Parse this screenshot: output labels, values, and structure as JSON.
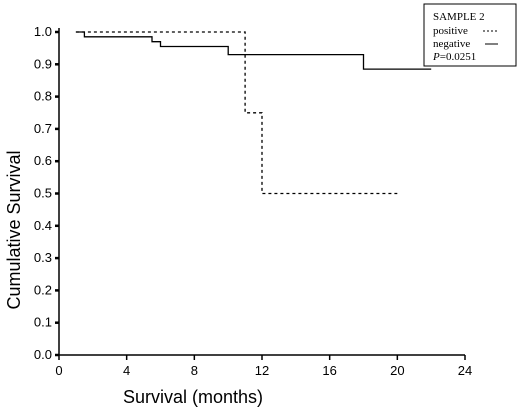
{
  "chart_data": {
    "type": "line",
    "subtype": "kaplan-meier-step",
    "xlabel": "Survival (months)",
    "ylabel": "Cumulative Survival",
    "xlim": [
      0,
      24
    ],
    "ylim": [
      0.0,
      1.0
    ],
    "x_ticks": [
      "0",
      "4",
      "8",
      "12",
      "16",
      "20",
      "24"
    ],
    "y_ticks": [
      "0.0",
      "0.1",
      "0.2",
      "0.3",
      "0.4",
      "0.5",
      "0.6",
      "0.7",
      "0.8",
      "0.9",
      "1.0"
    ],
    "grid": false,
    "legend": {
      "placement": "top-right",
      "title": "SAMPLE 2",
      "positive_label": "positive",
      "negative_label": "negative",
      "p_prefix": "P",
      "p_suffix": "=0.0251"
    },
    "series": [
      {
        "name": "positive",
        "style": "dashed",
        "x": [
          1,
          11,
          11,
          12,
          12,
          20
        ],
        "y": [
          1.0,
          1.0,
          0.75,
          0.75,
          0.5,
          0.5
        ]
      },
      {
        "name": "negative",
        "style": "solid",
        "x": [
          1,
          1.5,
          1.5,
          5.5,
          5.5,
          6,
          6,
          10,
          10,
          18,
          18,
          22
        ],
        "y": [
          1.0,
          1.0,
          0.985,
          0.985,
          0.97,
          0.97,
          0.955,
          0.955,
          0.93,
          0.93,
          0.885,
          0.885
        ]
      }
    ]
  }
}
